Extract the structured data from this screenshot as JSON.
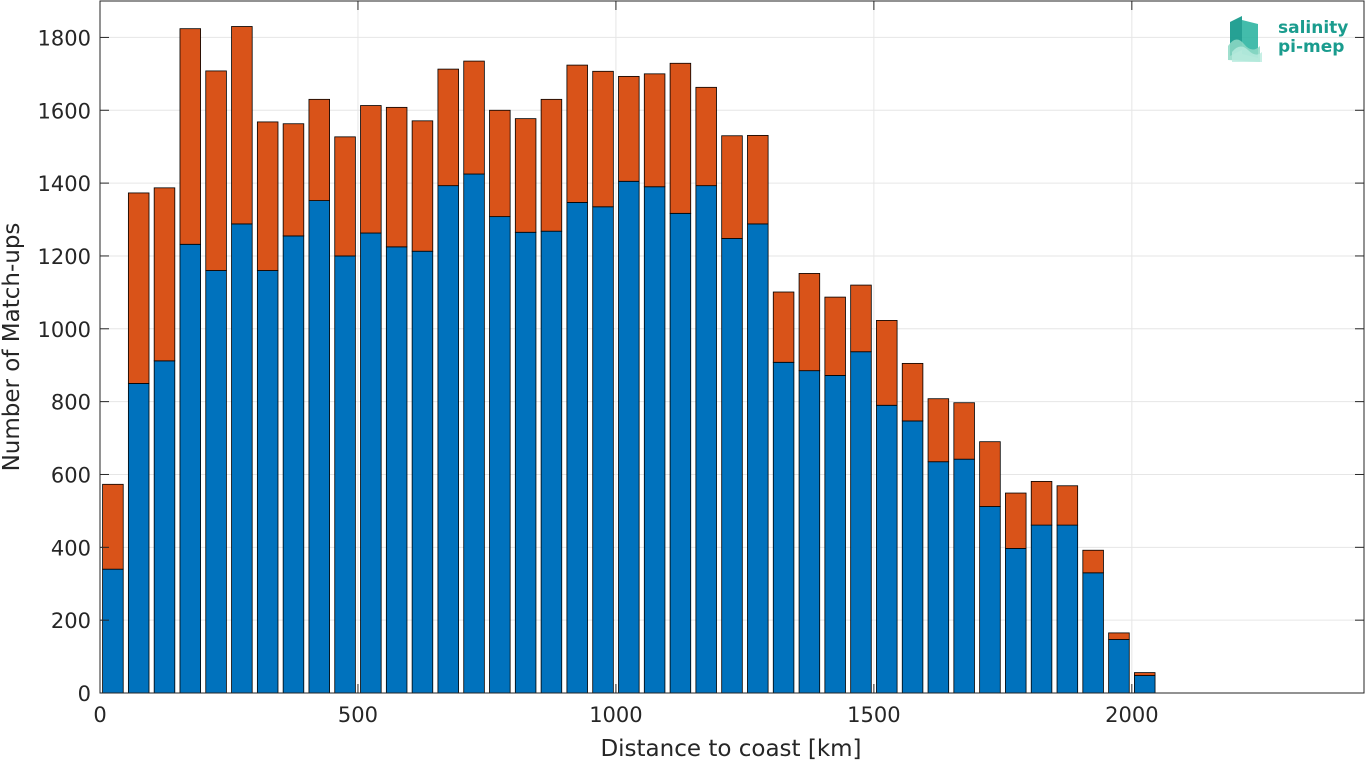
{
  "chart_data": {
    "type": "bar",
    "stacked": true,
    "xlabel": "Distance to coast [km]",
    "ylabel": "Number of Match-ups",
    "xlim": [
      0,
      2450
    ],
    "ylim": [
      0,
      1900
    ],
    "xticks": [
      0,
      500,
      1000,
      1500,
      2000
    ],
    "yticks": [
      0,
      200,
      400,
      600,
      800,
      1000,
      1200,
      1400,
      1600,
      1800
    ],
    "grid": true,
    "bin_width": 50,
    "x": [
      25,
      75,
      125,
      175,
      225,
      275,
      325,
      375,
      425,
      475,
      525,
      575,
      625,
      675,
      725,
      775,
      825,
      875,
      925,
      975,
      1025,
      1075,
      1125,
      1175,
      1225,
      1275,
      1325,
      1375,
      1425,
      1475,
      1525,
      1575,
      1625,
      1675,
      1725,
      1775,
      1825,
      1875,
      1925,
      1975,
      2025
    ],
    "series": [
      {
        "color": "#0072BD",
        "values": [
          340,
          850,
          912,
          1232,
          1160,
          1288,
          1160,
          1255,
          1352,
          1200,
          1263,
          1225,
          1213,
          1393,
          1425,
          1308,
          1265,
          1268,
          1347,
          1335,
          1405,
          1390,
          1317,
          1393,
          1248,
          1288,
          908,
          885,
          872,
          937,
          790,
          747,
          635,
          642,
          512,
          397,
          461,
          461,
          330,
          147,
          48
        ]
      },
      {
        "color": "#D95319",
        "values": [
          233,
          523,
          475,
          592,
          548,
          542,
          408,
          308,
          278,
          327,
          350,
          383,
          358,
          320,
          310,
          292,
          312,
          362,
          377,
          372,
          288,
          310,
          412,
          270,
          282,
          243,
          193,
          267,
          215,
          183,
          233,
          158,
          173,
          155,
          178,
          152,
          120,
          108,
          62,
          18,
          8
        ]
      }
    ]
  },
  "logo": {
    "line1": "salinity",
    "line2": "pi-mep",
    "icon": "salinity-logo-icon",
    "color": "#1a9c8e"
  }
}
